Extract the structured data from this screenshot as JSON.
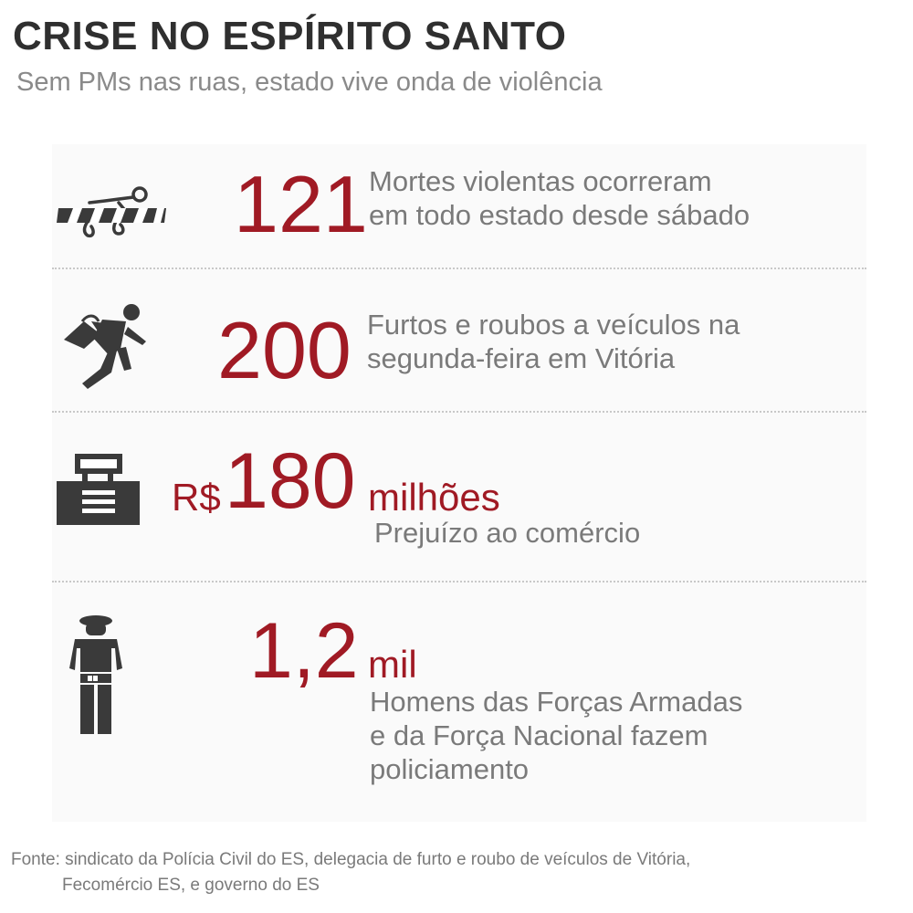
{
  "header": {
    "title": "CRISE NO ESPÍRITO SANTO",
    "subtitle": "Sem PMs nas ruas, estado vive onda de violência"
  },
  "stats": [
    {
      "icon": "crime-scene-body-icon",
      "prefix": "",
      "value": "121",
      "unit": "",
      "description": [
        "Mortes violentas ocorreram",
        "em todo estado desde sábado"
      ]
    },
    {
      "icon": "thief-running-icon",
      "prefix": "",
      "value": "200",
      "unit": "",
      "description": [
        "Furtos e roubos a veículos na",
        "segunda-feira em Vitória"
      ]
    },
    {
      "icon": "shop-counter-icon",
      "prefix": "R$",
      "value": "180",
      "unit": "milhões",
      "description": [
        "Prejuízo ao comércio"
      ]
    },
    {
      "icon": "soldier-icon",
      "prefix": "",
      "value": "1,2",
      "unit": "mil",
      "description": [
        "Homens das Forças Armadas",
        "e da Força Nacional fazem",
        "policiamento"
      ]
    }
  ],
  "source": {
    "line1": "Fonte: sindicato da Polícia Civil do ES, delegacia de furto e roubo de veículos de Vitória,",
    "line2": "Fecomércio ES, e governo do ES"
  },
  "colors": {
    "accent": "#a01a24",
    "title": "#2f2f2f",
    "text": "#7a7a7a",
    "icon": "#3a3a3a"
  }
}
